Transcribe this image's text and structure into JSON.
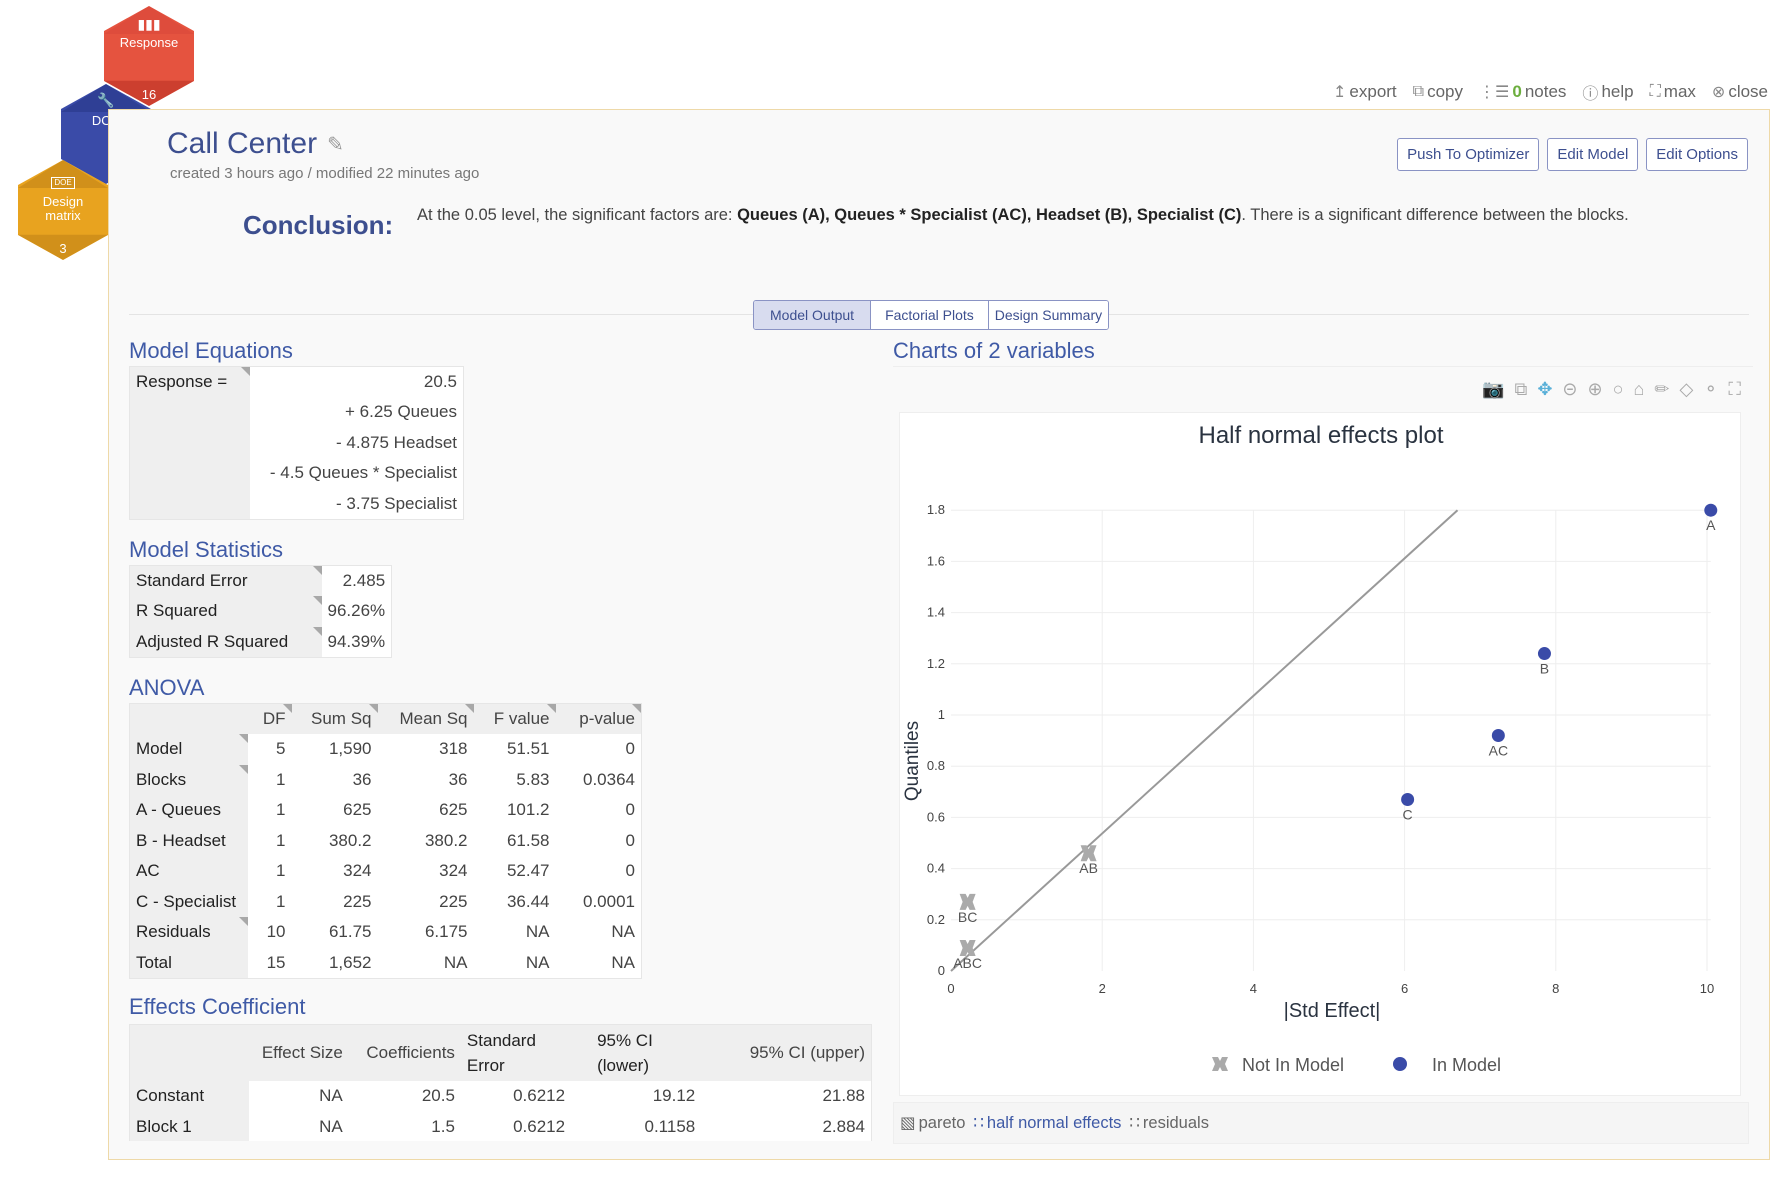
{
  "nav": {
    "response": {
      "label": "Response",
      "count": "16",
      "icon": "bar-chart-icon",
      "color": "#e5533f"
    },
    "doe": {
      "label": "DOE",
      "icon": "wrench-icon",
      "color": "#3a4ba8"
    },
    "design_matrix": {
      "label_line1": "Design",
      "label_line2": "matrix",
      "count": "3",
      "icon": "doe-badge-icon",
      "badge": "DOE",
      "color": "#e8a31f"
    }
  },
  "toolbar": {
    "export": "export",
    "copy": "copy",
    "notes_count": "0",
    "notes": "notes",
    "help": "help",
    "max": "max",
    "close": "close"
  },
  "header": {
    "title": "Call Center",
    "meta": "created 3 hours ago / modified 22 minutes ago",
    "buttons": {
      "push": "Push To Optimizer",
      "edit_model": "Edit Model",
      "edit_options": "Edit Options"
    }
  },
  "conclusion": {
    "label": "Conclusion:",
    "prefix": "At the 0.05 level, the significant factors are: ",
    "factors": "Queues (A), Queues * Specialist (AC), Headset (B), Specialist (C)",
    "suffix": ". There is a significant difference between the blocks."
  },
  "tabs": [
    {
      "label": "Model Output",
      "active": true
    },
    {
      "label": "Factorial Plots",
      "active": false
    },
    {
      "label": "Design Summary",
      "active": false
    }
  ],
  "model_equations": {
    "title": "Model Equations",
    "lhs": "Response =",
    "terms": [
      "20.5",
      "+ 6.25 Queues",
      "- 4.875 Headset",
      "- 4.5 Queues * Specialist",
      "- 3.75 Specialist"
    ]
  },
  "model_statistics": {
    "title": "Model Statistics",
    "rows": [
      {
        "label": "Standard Error",
        "value": "2.485"
      },
      {
        "label": "R Squared",
        "value": "96.26%"
      },
      {
        "label": "Adjusted R Squared",
        "value": "94.39%"
      }
    ]
  },
  "anova": {
    "title": "ANOVA",
    "columns": [
      "DF",
      "Sum Sq",
      "Mean Sq",
      "F value",
      "p-value"
    ],
    "rows": [
      {
        "label": "Model",
        "values": [
          "5",
          "1,590",
          "318",
          "51.51",
          "0"
        ]
      },
      {
        "label": "Blocks",
        "values": [
          "1",
          "36",
          "36",
          "5.83",
          "0.0364"
        ]
      },
      {
        "label": "A - Queues",
        "values": [
          "1",
          "625",
          "625",
          "101.2",
          "0"
        ]
      },
      {
        "label": "B - Headset",
        "values": [
          "1",
          "380.2",
          "380.2",
          "61.58",
          "0"
        ]
      },
      {
        "label": "AC",
        "values": [
          "1",
          "324",
          "324",
          "52.47",
          "0"
        ]
      },
      {
        "label": "C - Specialist",
        "values": [
          "1",
          "225",
          "225",
          "36.44",
          "0.0001"
        ]
      },
      {
        "label": "Residuals",
        "values": [
          "10",
          "61.75",
          "6.175",
          "NA",
          "NA"
        ]
      },
      {
        "label": "Total",
        "values": [
          "15",
          "1,652",
          "NA",
          "NA",
          "NA"
        ]
      }
    ]
  },
  "effects": {
    "title": "Effects Coefficient",
    "columns": [
      "Effect Size",
      "Coefficients",
      "Standard Error",
      "95% CI (lower)",
      "95% CI (upper)"
    ],
    "rows": [
      {
        "label": "Constant",
        "values": [
          "NA",
          "20.5",
          "0.6212",
          "19.12",
          "21.88"
        ]
      },
      {
        "label": "Block 1",
        "values": [
          "NA",
          "1.5",
          "0.6212",
          "0.1158",
          "2.884"
        ]
      }
    ]
  },
  "chart_panel": {
    "title": "Charts of 2 variables",
    "tools": [
      "camera-icon",
      "copy-icon",
      "pan-icon",
      "zoom-out-icon",
      "zoom-in-icon",
      "autoscale-icon",
      "home-icon",
      "pencil-icon",
      "eraser-icon",
      "key-icon",
      "fullscreen-icon"
    ],
    "footer_tabs": [
      {
        "label": "pareto",
        "icon": "bar-chart-icon",
        "active": false
      },
      {
        "label": "half normal effects",
        "icon": "scatter-icon",
        "active": true
      },
      {
        "label": "residuals",
        "icon": "scatter-icon",
        "active": false
      }
    ]
  },
  "chart_data": {
    "type": "scatter",
    "title": "Half normal effects plot",
    "xlabel": "|Std Effect|",
    "ylabel": "Quantiles",
    "xlim": [
      0,
      10.1
    ],
    "ylim": [
      0,
      1.8
    ],
    "xticks": [
      "0",
      "2",
      "4",
      "6",
      "8",
      "10"
    ],
    "yticks": [
      "0",
      "0.2",
      "0.4",
      "0.6",
      "0.8",
      "1",
      "1.2",
      "1.4",
      "1.6",
      "1.8"
    ],
    "grid": true,
    "legend_position": "bottom",
    "series": [
      {
        "name": "Not In Model",
        "marker": "x",
        "color": "#aaaaaa",
        "points": [
          {
            "label": "ABC",
            "x": 0.22,
            "y": 0.09
          },
          {
            "label": "BC",
            "x": 0.22,
            "y": 0.27
          },
          {
            "label": "AB",
            "x": 1.82,
            "y": 0.46
          }
        ]
      },
      {
        "name": "In Model",
        "marker": "circle",
        "color": "#3a4ba8",
        "points": [
          {
            "label": "C",
            "x": 6.04,
            "y": 0.67
          },
          {
            "label": "AC",
            "x": 7.24,
            "y": 0.92
          },
          {
            "label": "B",
            "x": 7.85,
            "y": 1.24
          },
          {
            "label": "A",
            "x": 10.05,
            "y": 1.8
          }
        ]
      }
    ],
    "reference_line": {
      "x": [
        0,
        6.7
      ],
      "y": [
        0,
        1.8
      ],
      "color": "#999999"
    }
  }
}
